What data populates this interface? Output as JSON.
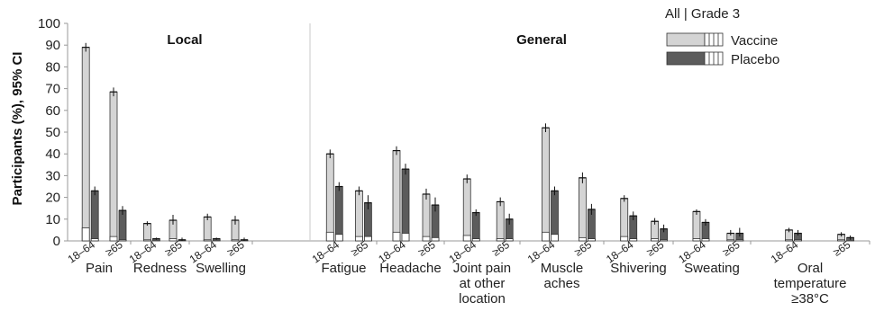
{
  "chart_data": {
    "type": "bar",
    "ylabel": "Participants (%), 95% CI",
    "ylim": [
      0,
      100
    ],
    "yticks": [
      0,
      10,
      20,
      30,
      40,
      50,
      60,
      70,
      80,
      90,
      100
    ],
    "panels": [
      "Local",
      "General"
    ],
    "legend_header": "All | Grade 3",
    "colors": {
      "Vaccine": "#d4d4d4",
      "Placebo": "#5c5c5c",
      "axis": "#999999"
    },
    "series": [
      {
        "name": "Vaccine"
      },
      {
        "name": "Placebo"
      }
    ],
    "groups": [
      {
        "category": "Pain",
        "panel": "Local",
        "ages": [
          {
            "age": "18–64",
            "Vaccine": {
              "all": 89,
              "ci": [
                87,
                91
              ],
              "grade3": 6
            },
            "Placebo": {
              "all": 23,
              "ci": [
                21,
                25
              ],
              "grade3": 1
            }
          },
          {
            "age": "≥65",
            "Vaccine": {
              "all": 68.5,
              "ci": [
                66.5,
                70.5
              ],
              "grade3": 2
            },
            "Placebo": {
              "all": 14,
              "ci": [
                12,
                16
              ],
              "grade3": 0.5
            }
          }
        ]
      },
      {
        "category": "Redness",
        "panel": "Local",
        "ages": [
          {
            "age": "18–64",
            "Vaccine": {
              "all": 8,
              "ci": [
                7,
                9
              ],
              "grade3": 0.5
            },
            "Placebo": {
              "all": 1,
              "ci": [
                0.5,
                1.5
              ],
              "grade3": 0
            }
          },
          {
            "age": "≥65",
            "Vaccine": {
              "all": 9.5,
              "ci": [
                7.5,
                12
              ],
              "grade3": 1
            },
            "Placebo": {
              "all": 0.5,
              "ci": [
                0,
                1.5
              ],
              "grade3": 0
            }
          }
        ]
      },
      {
        "category": "Swelling",
        "panel": "Local",
        "ages": [
          {
            "age": "18–64",
            "Vaccine": {
              "all": 11,
              "ci": [
                9.5,
                12.5
              ],
              "grade3": 0.5
            },
            "Placebo": {
              "all": 1,
              "ci": [
                0.5,
                1.5
              ],
              "grade3": 0
            }
          },
          {
            "age": "≥65",
            "Vaccine": {
              "all": 9.5,
              "ci": [
                7.5,
                11.5
              ],
              "grade3": 0.5
            },
            "Placebo": {
              "all": 0.5,
              "ci": [
                0,
                1.5
              ],
              "grade3": 0
            }
          }
        ]
      },
      {
        "category": "Fatigue",
        "panel": "General",
        "ages": [
          {
            "age": "18–64",
            "Vaccine": {
              "all": 40,
              "ci": [
                38,
                42
              ],
              "grade3": 4
            },
            "Placebo": {
              "all": 25,
              "ci": [
                23,
                27
              ],
              "grade3": 3
            }
          },
          {
            "age": "≥65",
            "Vaccine": {
              "all": 23,
              "ci": [
                21,
                25
              ],
              "grade3": 2
            },
            "Placebo": {
              "all": 17.5,
              "ci": [
                14.5,
                21
              ],
              "grade3": 2
            }
          }
        ]
      },
      {
        "category": "Headache",
        "panel": "General",
        "ages": [
          {
            "age": "18–64",
            "Vaccine": {
              "all": 41.5,
              "ci": [
                39.5,
                43.5
              ],
              "grade3": 4
            },
            "Placebo": {
              "all": 33,
              "ci": [
                30.5,
                35.5
              ],
              "grade3": 3.5
            }
          },
          {
            "age": "≥65",
            "Vaccine": {
              "all": 21.5,
              "ci": [
                19,
                24
              ],
              "grade3": 2
            },
            "Placebo": {
              "all": 16.5,
              "ci": [
                13.5,
                20
              ],
              "grade3": 1.5
            }
          }
        ]
      },
      {
        "category": "Joint pain at other location",
        "panel": "General",
        "ages": [
          {
            "age": "18–64",
            "Vaccine": {
              "all": 28.5,
              "ci": [
                26.5,
                30.5
              ],
              "grade3": 2.5
            },
            "Placebo": {
              "all": 13,
              "ci": [
                11.5,
                14.5
              ],
              "grade3": 1
            }
          },
          {
            "age": "≥65",
            "Vaccine": {
              "all": 18,
              "ci": [
                16,
                20
              ],
              "grade3": 1
            },
            "Placebo": {
              "all": 10,
              "ci": [
                7.5,
                12.5
              ],
              "grade3": 1
            }
          }
        ]
      },
      {
        "category": "Muscle aches",
        "panel": "General",
        "ages": [
          {
            "age": "18–64",
            "Vaccine": {
              "all": 52,
              "ci": [
                50,
                54
              ],
              "grade3": 4
            },
            "Placebo": {
              "all": 23,
              "ci": [
                21,
                25
              ],
              "grade3": 3
            }
          },
          {
            "age": "≥65",
            "Vaccine": {
              "all": 29,
              "ci": [
                26.5,
                31.5
              ],
              "grade3": 1.5
            },
            "Placebo": {
              "all": 14.5,
              "ci": [
                12,
                17
              ],
              "grade3": 1
            }
          }
        ]
      },
      {
        "category": "Shivering",
        "panel": "General",
        "ages": [
          {
            "age": "18–64",
            "Vaccine": {
              "all": 19.5,
              "ci": [
                18,
                21
              ],
              "grade3": 2
            },
            "Placebo": {
              "all": 11.5,
              "ci": [
                9.5,
                13.5
              ],
              "grade3": 1
            }
          },
          {
            "age": "≥65",
            "Vaccine": {
              "all": 9,
              "ci": [
                7.5,
                10.5
              ],
              "grade3": 1
            },
            "Placebo": {
              "all": 5.5,
              "ci": [
                4,
                7.5
              ],
              "grade3": 0.5
            }
          }
        ]
      },
      {
        "category": "Sweating",
        "panel": "General",
        "ages": [
          {
            "age": "18–64",
            "Vaccine": {
              "all": 13.5,
              "ci": [
                12,
                14.5
              ],
              "grade3": 1
            },
            "Placebo": {
              "all": 8.5,
              "ci": [
                7,
                10
              ],
              "grade3": 1
            }
          },
          {
            "age": "≥65",
            "Vaccine": {
              "all": 3.5,
              "ci": [
                2.5,
                5
              ],
              "grade3": 0.5
            },
            "Placebo": {
              "all": 3.5,
              "ci": [
                2,
                6
              ],
              "grade3": 0.5
            }
          }
        ]
      },
      {
        "category": "Oral temperature ≥38°C",
        "panel": "General",
        "ages": [
          {
            "age": "18–64",
            "Vaccine": {
              "all": 5,
              "ci": [
                4,
                6
              ],
              "grade3": 0.5
            },
            "Placebo": {
              "all": 3.5,
              "ci": [
                2.5,
                5
              ],
              "grade3": 0.5
            }
          },
          {
            "age": "≥65",
            "Vaccine": {
              "all": 3,
              "ci": [
                2,
                4
              ],
              "grade3": 0.5
            },
            "Placebo": {
              "all": 1.5,
              "ci": [
                0.5,
                2.5
              ],
              "grade3": 0
            }
          }
        ]
      }
    ]
  }
}
